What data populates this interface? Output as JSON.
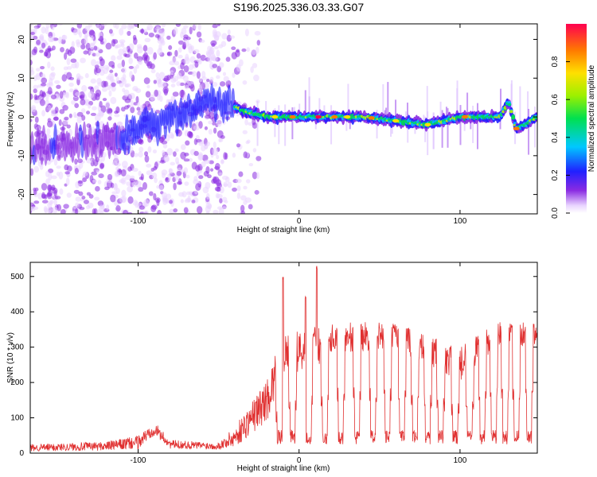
{
  "figure_title": "S196.2025.336.03.33.G07",
  "chart_data": [
    {
      "type": "heatmap",
      "title": "S196.2025.336.03.33.G07",
      "xlabel": "Height of straight line (km)",
      "ylabel": "Frequency (Hz)",
      "xlim": [
        -167,
        148
      ],
      "ylim": [
        -25,
        24
      ],
      "xticks": [
        -100,
        0,
        100
      ],
      "yticks": [
        -20,
        -10,
        0,
        10,
        20
      ],
      "colorbar": {
        "label": "Normalized spectral amplitude",
        "range": [
          0,
          1
        ],
        "ticks": [
          0.0,
          0.2,
          0.4,
          0.6,
          0.8
        ]
      },
      "ridge": [
        {
          "x": -167,
          "f": -8
        },
        {
          "x": -150,
          "f": -7
        },
        {
          "x": -130,
          "f": -6
        },
        {
          "x": -110,
          "f": -5
        },
        {
          "x": -90,
          "f": -2
        },
        {
          "x": -70,
          "f": 2
        },
        {
          "x": -55,
          "f": 3
        },
        {
          "x": -45,
          "f": 4
        },
        {
          "x": -35,
          "f": 1.5
        },
        {
          "x": -20,
          "f": 0
        },
        {
          "x": 0,
          "f": 0
        },
        {
          "x": 40,
          "f": 0
        },
        {
          "x": 80,
          "f": -2
        },
        {
          "x": 100,
          "f": 0
        },
        {
          "x": 125,
          "f": 0
        },
        {
          "x": 130,
          "f": 4
        },
        {
          "x": 135,
          "f": -3
        },
        {
          "x": 140,
          "f": -2
        },
        {
          "x": 148,
          "f": 0
        }
      ]
    },
    {
      "type": "line",
      "xlabel": "Height of straight line (km)",
      "ylabel": "SNR (10 * v/v)",
      "xlim": [
        -167,
        148
      ],
      "ylim": [
        0,
        540
      ],
      "xticks": [
        -100,
        0,
        100
      ],
      "yticks": [
        0,
        100,
        200,
        300,
        400,
        500
      ],
      "series": [
        {
          "name": "SNR",
          "color": "#e03030",
          "envelope": [
            {
              "x": -167,
              "base": 15,
              "amp": 20
            },
            {
              "x": -120,
              "base": 20,
              "amp": 25
            },
            {
              "x": -100,
              "base": 30,
              "amp": 40
            },
            {
              "x": -90,
              "base": 70,
              "amp": 40
            },
            {
              "x": -80,
              "base": 25,
              "amp": 25
            },
            {
              "x": -50,
              "base": 20,
              "amp": 20
            },
            {
              "x": -40,
              "base": 45,
              "amp": 60
            },
            {
              "x": -20,
              "base": 150,
              "amp": 120
            },
            {
              "x": -10,
              "base": 280,
              "amp": 120
            },
            {
              "x": 10,
              "base": 300,
              "amp": 120
            },
            {
              "x": 20,
              "base": 330,
              "amp": 90
            },
            {
              "x": 60,
              "base": 330,
              "amp": 80
            },
            {
              "x": 100,
              "base": 250,
              "amp": 100
            },
            {
              "x": 120,
              "base": 330,
              "amp": 80
            },
            {
              "x": 148,
              "base": 340,
              "amp": 70
            }
          ],
          "peaks": [
            {
              "x": -10,
              "y": 510
            },
            {
              "x": 11,
              "y": 540
            },
            {
              "x": 4,
              "y": 450
            }
          ],
          "dropouts_x": [
            -12,
            -4,
            6,
            16,
            26,
            36,
            46,
            55,
            64,
            72,
            80,
            88,
            97,
            106,
            114,
            121,
            128,
            135,
            143
          ]
        }
      ]
    }
  ]
}
